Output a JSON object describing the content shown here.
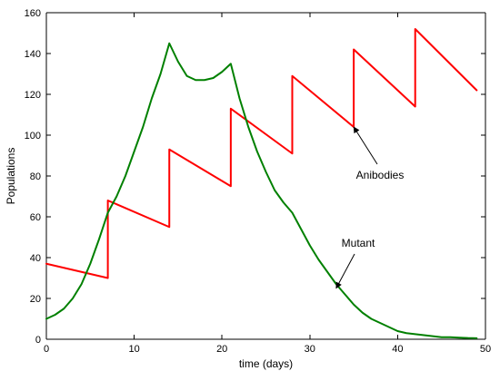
{
  "chart_data": {
    "type": "line",
    "title": "",
    "xlabel": "time (days)",
    "ylabel": "Populations",
    "xlim": [
      0,
      50
    ],
    "ylim": [
      0,
      160
    ],
    "xticks": [
      0,
      10,
      20,
      30,
      40,
      50
    ],
    "yticks": [
      0,
      20,
      40,
      60,
      80,
      100,
      120,
      140,
      160
    ],
    "grid": false,
    "legend": "none",
    "colors": {
      "red_series": "#ff0000",
      "green_series": "#008000",
      "axis": "#000000"
    },
    "series": [
      {
        "color": "#ff0000",
        "points": [
          [
            0,
            37
          ],
          [
            7,
            30
          ],
          [
            7,
            68
          ],
          [
            14,
            55
          ],
          [
            14,
            93
          ],
          [
            21,
            75
          ],
          [
            21,
            113
          ],
          [
            28,
            91
          ],
          [
            28,
            129
          ],
          [
            35,
            104
          ],
          [
            35,
            142
          ],
          [
            42,
            114
          ],
          [
            42,
            152
          ],
          [
            49,
            122
          ]
        ]
      },
      {
        "color": "#008000",
        "points": [
          [
            0,
            10
          ],
          [
            1,
            12
          ],
          [
            2,
            15
          ],
          [
            3,
            20
          ],
          [
            4,
            27
          ],
          [
            5,
            37
          ],
          [
            6,
            49
          ],
          [
            7,
            62
          ],
          [
            8,
            70
          ],
          [
            9,
            80
          ],
          [
            10,
            92
          ],
          [
            11,
            104
          ],
          [
            12,
            118
          ],
          [
            13,
            130
          ],
          [
            14,
            145
          ],
          [
            15,
            136
          ],
          [
            16,
            129
          ],
          [
            17,
            127
          ],
          [
            18,
            127
          ],
          [
            19,
            128
          ],
          [
            20,
            131
          ],
          [
            21,
            135
          ],
          [
            22,
            118
          ],
          [
            23,
            104
          ],
          [
            24,
            92
          ],
          [
            25,
            82
          ],
          [
            26,
            73
          ],
          [
            27,
            67
          ],
          [
            28,
            62
          ],
          [
            29,
            54
          ],
          [
            30,
            46
          ],
          [
            31,
            39
          ],
          [
            32,
            33
          ],
          [
            33,
            27
          ],
          [
            34,
            22
          ],
          [
            35,
            17
          ],
          [
            36,
            13
          ],
          [
            37,
            10
          ],
          [
            38,
            8
          ],
          [
            39,
            6
          ],
          [
            40,
            4
          ],
          [
            41,
            3
          ],
          [
            42,
            2.5
          ],
          [
            43,
            2
          ],
          [
            44,
            1.5
          ],
          [
            45,
            1
          ],
          [
            46,
            1
          ],
          [
            47,
            0.8
          ],
          [
            48,
            0.6
          ],
          [
            49,
            0.5
          ]
        ]
      }
    ],
    "annotations": [
      {
        "text": "Anibodies",
        "target": [
          35,
          104
        ],
        "text_anchor": "middle"
      },
      {
        "text": "Mutant",
        "target": [
          33,
          25
        ],
        "text_anchor": "middle"
      }
    ]
  }
}
